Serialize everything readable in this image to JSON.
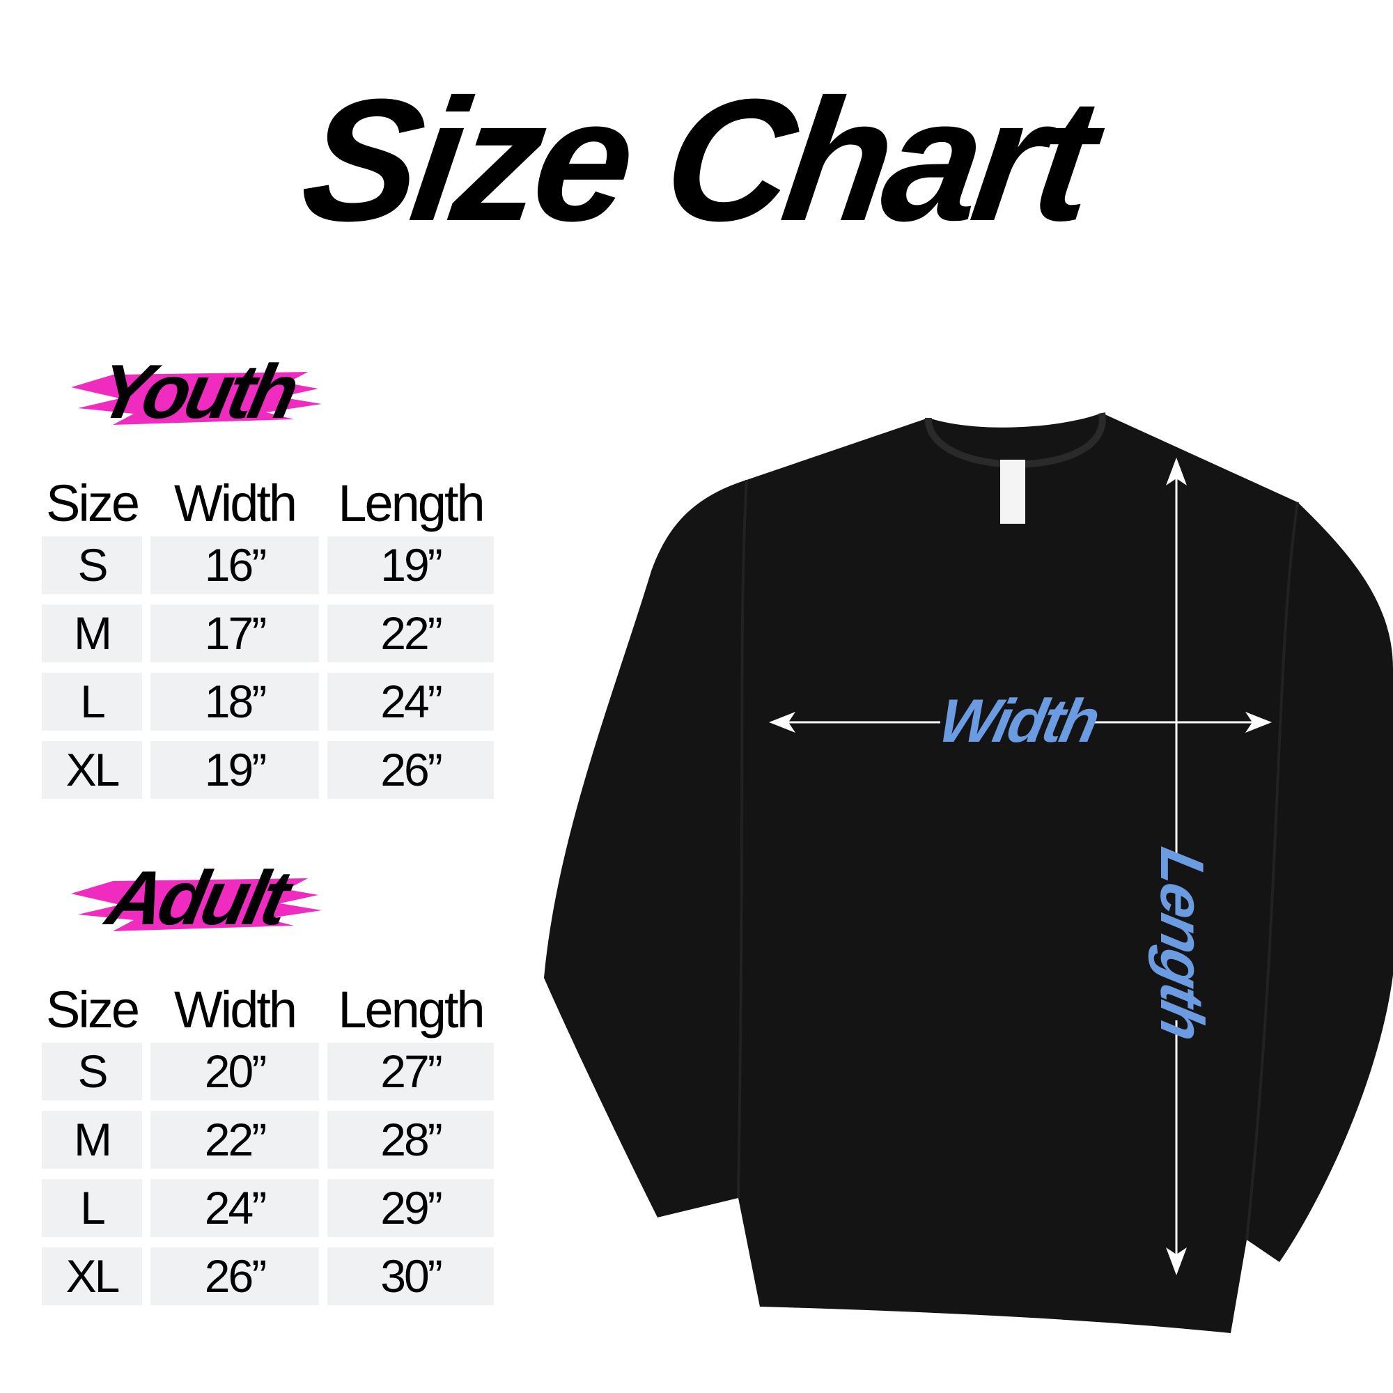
{
  "title": "Size Chart",
  "colors": {
    "accent_pink": "#f02cc0",
    "label_blue": "#6b9be0",
    "cell_bg": "#f0f1f3",
    "shirt": "#141414"
  },
  "youth": {
    "label": "Youth",
    "headers": [
      "Size",
      "Width",
      "Length"
    ],
    "rows": [
      [
        "S",
        "16”",
        "19”"
      ],
      [
        "M",
        "17”",
        "22”"
      ],
      [
        "L",
        "18”",
        "24”"
      ],
      [
        "XL",
        "19”",
        "26”"
      ]
    ]
  },
  "adult": {
    "label": "Adult",
    "headers": [
      "Size",
      "Width",
      "Length"
    ],
    "rows": [
      [
        "S",
        "20”",
        "27”"
      ],
      [
        "M",
        "22”",
        "28”"
      ],
      [
        "L",
        "24”",
        "29”"
      ],
      [
        "XL",
        "26”",
        "30”"
      ]
    ]
  },
  "diagram": {
    "width_label": "Width",
    "length_label": "Length"
  }
}
